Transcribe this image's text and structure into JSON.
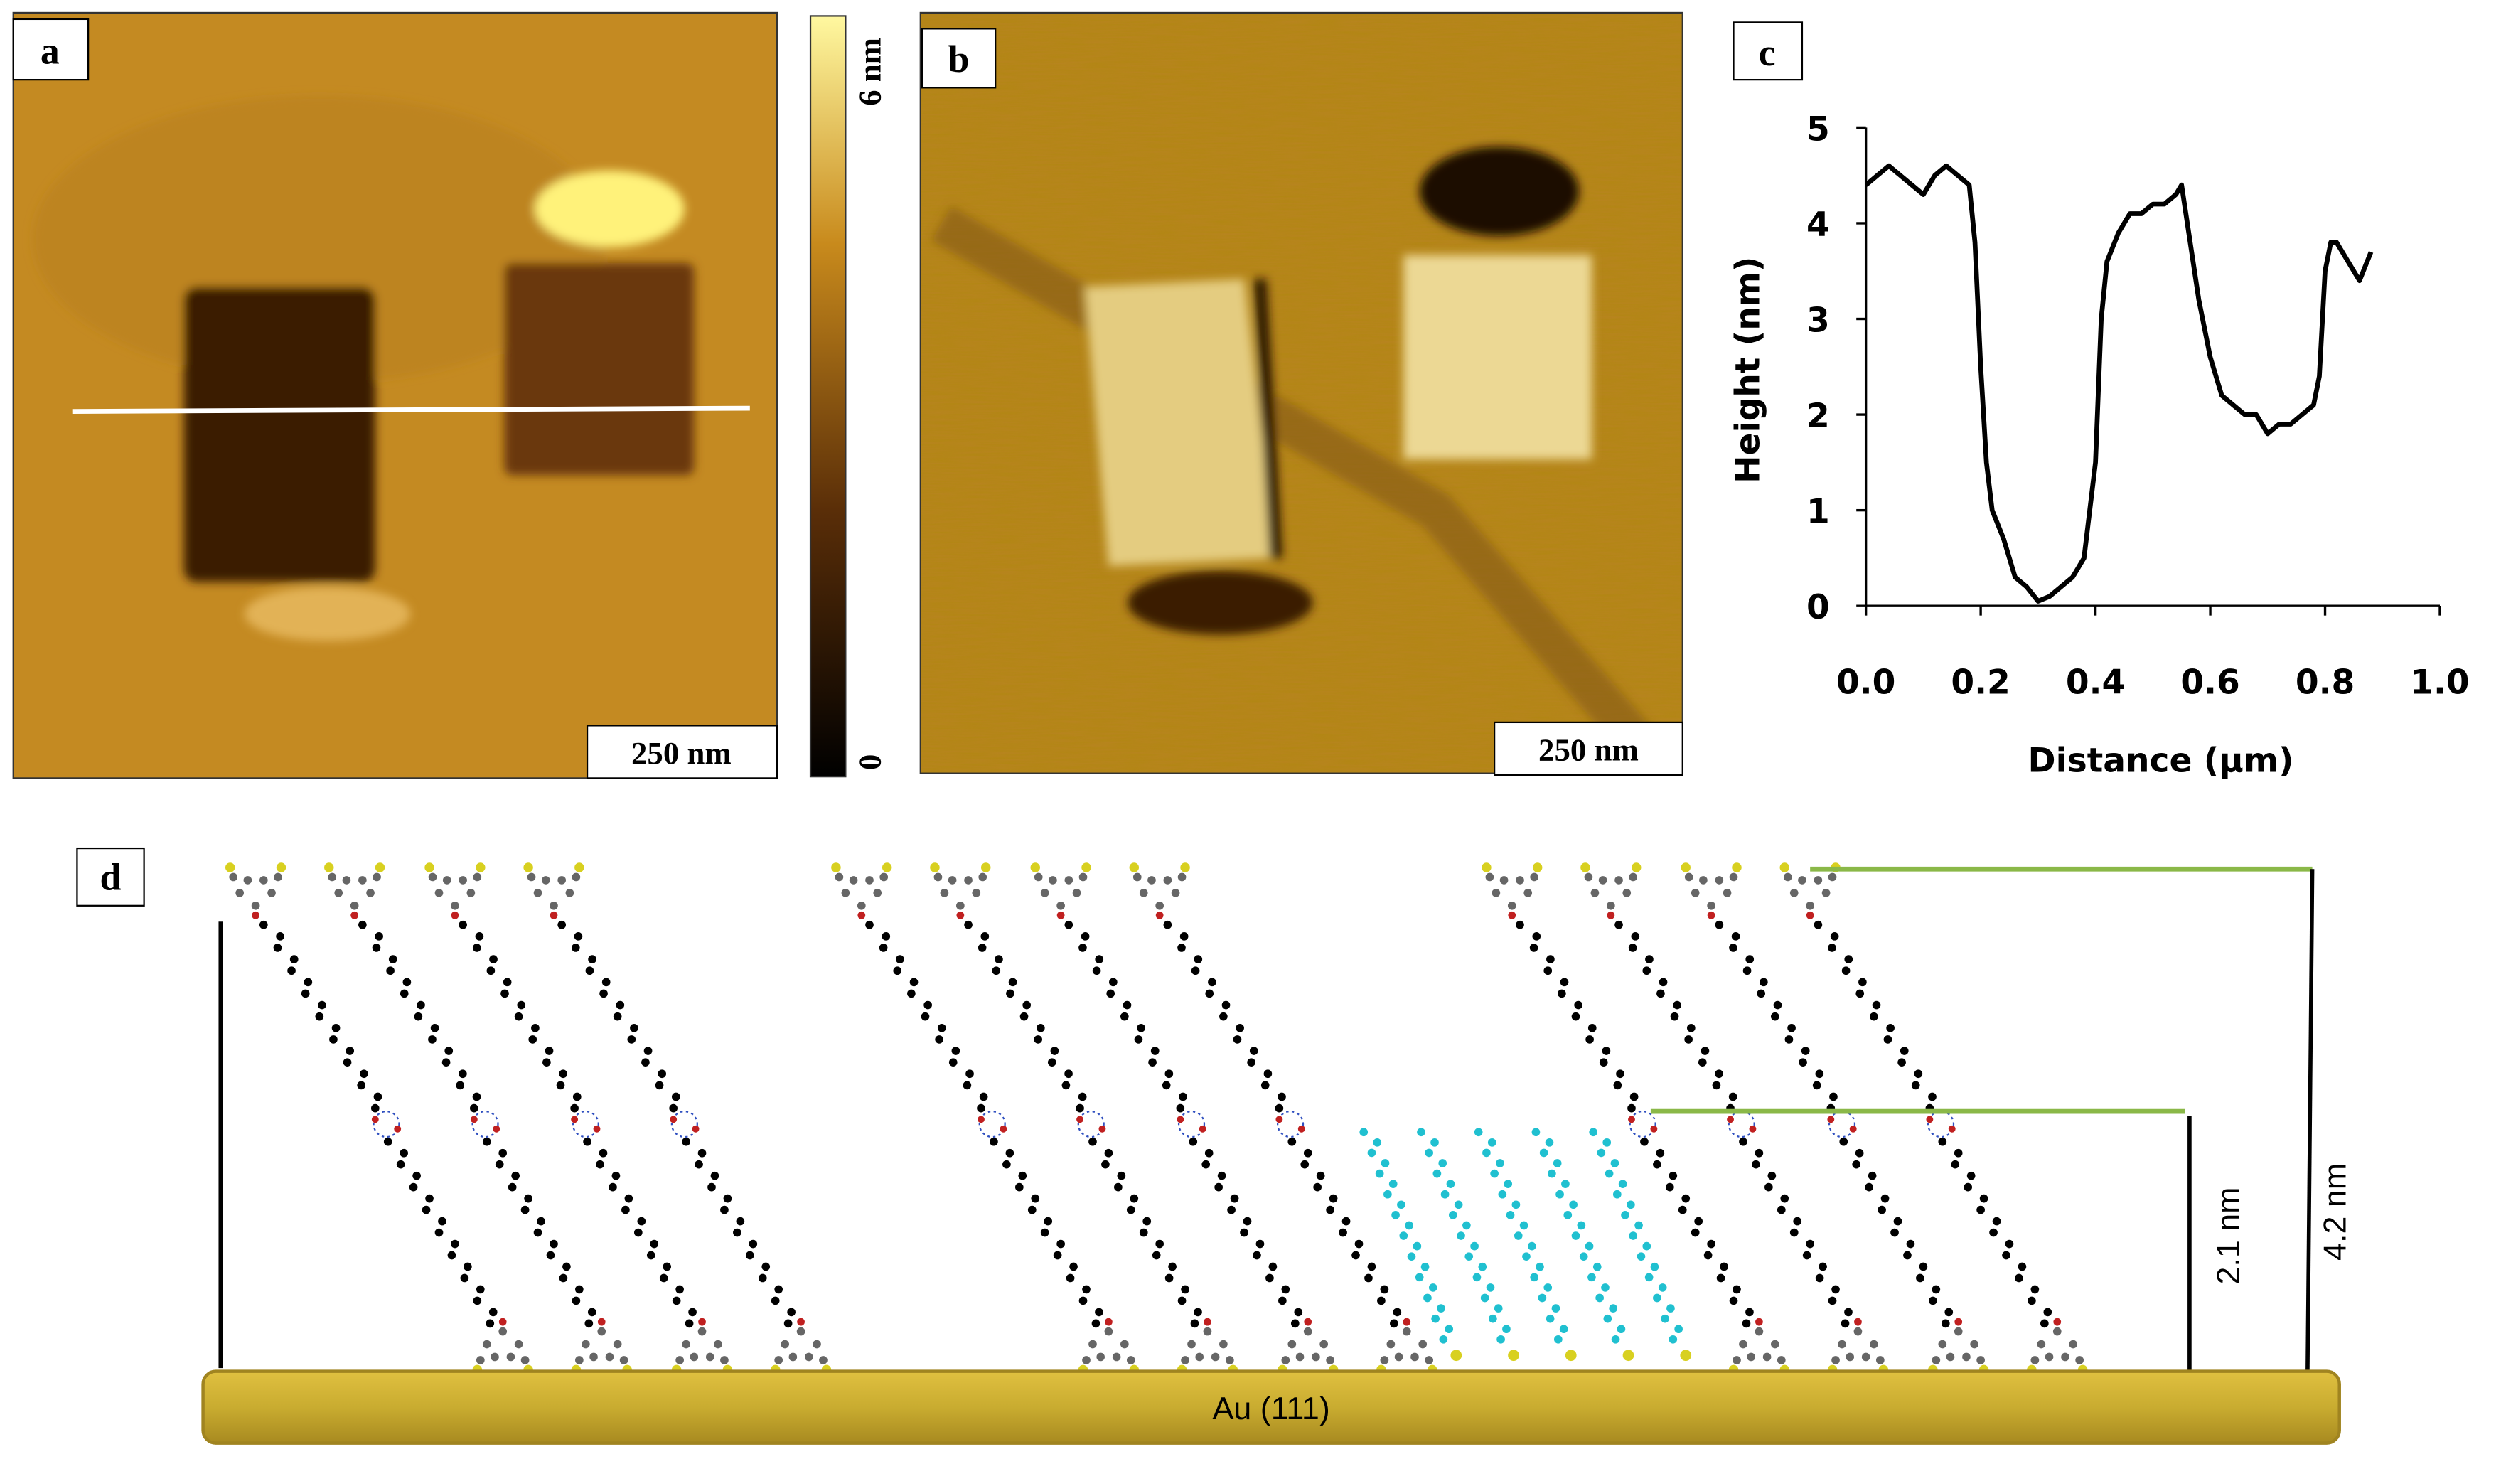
{
  "panels": {
    "a": {
      "label": "a",
      "scale_bar": "250 nm",
      "colorbar_max": "6 nm",
      "colorbar_min": "0"
    },
    "b": {
      "label": "b",
      "scale_bar": "250 nm"
    },
    "c": {
      "label": "c"
    },
    "d": {
      "label": "d",
      "substrate": "Au (111)",
      "height_short": "2.1 nm",
      "height_tall": "4.2 nm"
    }
  },
  "chart_data": {
    "type": "line",
    "xlabel": "Distance (µm)",
    "ylabel": "Height (nm)",
    "color": "#000000",
    "x": [
      0.0,
      0.02,
      0.04,
      0.06,
      0.08,
      0.1,
      0.12,
      0.14,
      0.16,
      0.18,
      0.19,
      0.2,
      0.21,
      0.22,
      0.24,
      0.26,
      0.28,
      0.3,
      0.32,
      0.34,
      0.36,
      0.38,
      0.4,
      0.41,
      0.42,
      0.44,
      0.46,
      0.48,
      0.5,
      0.52,
      0.54,
      0.55,
      0.56,
      0.58,
      0.6,
      0.62,
      0.64,
      0.66,
      0.68,
      0.7,
      0.72,
      0.74,
      0.76,
      0.78,
      0.79,
      0.8,
      0.81,
      0.82,
      0.84,
      0.86,
      0.88
    ],
    "values": [
      4.4,
      4.5,
      4.6,
      4.5,
      4.4,
      4.3,
      4.5,
      4.6,
      4.5,
      4.4,
      3.8,
      2.5,
      1.5,
      1.0,
      0.7,
      0.3,
      0.2,
      0.05,
      0.1,
      0.2,
      0.3,
      0.5,
      1.5,
      3.0,
      3.6,
      3.9,
      4.1,
      4.1,
      4.2,
      4.2,
      4.3,
      4.4,
      4.0,
      3.2,
      2.6,
      2.2,
      2.1,
      2.0,
      2.0,
      1.8,
      1.9,
      1.9,
      2.0,
      2.1,
      2.4,
      3.5,
      3.8,
      3.8,
      3.6,
      3.4,
      3.7
    ],
    "xlim": [
      0,
      1
    ],
    "ylim": [
      0,
      5
    ],
    "xticks": [
      {
        "value": 0,
        "label": "0.0"
      },
      {
        "value": 0.2,
        "label": "0.2"
      },
      {
        "value": 0.4,
        "label": "0.4"
      },
      {
        "value": 0.6,
        "label": "0.6"
      },
      {
        "value": 0.8,
        "label": "0.8"
      },
      {
        "value": 1,
        "label": "1.0"
      }
    ],
    "yticks": [
      0,
      1,
      2,
      3,
      4,
      5
    ]
  }
}
